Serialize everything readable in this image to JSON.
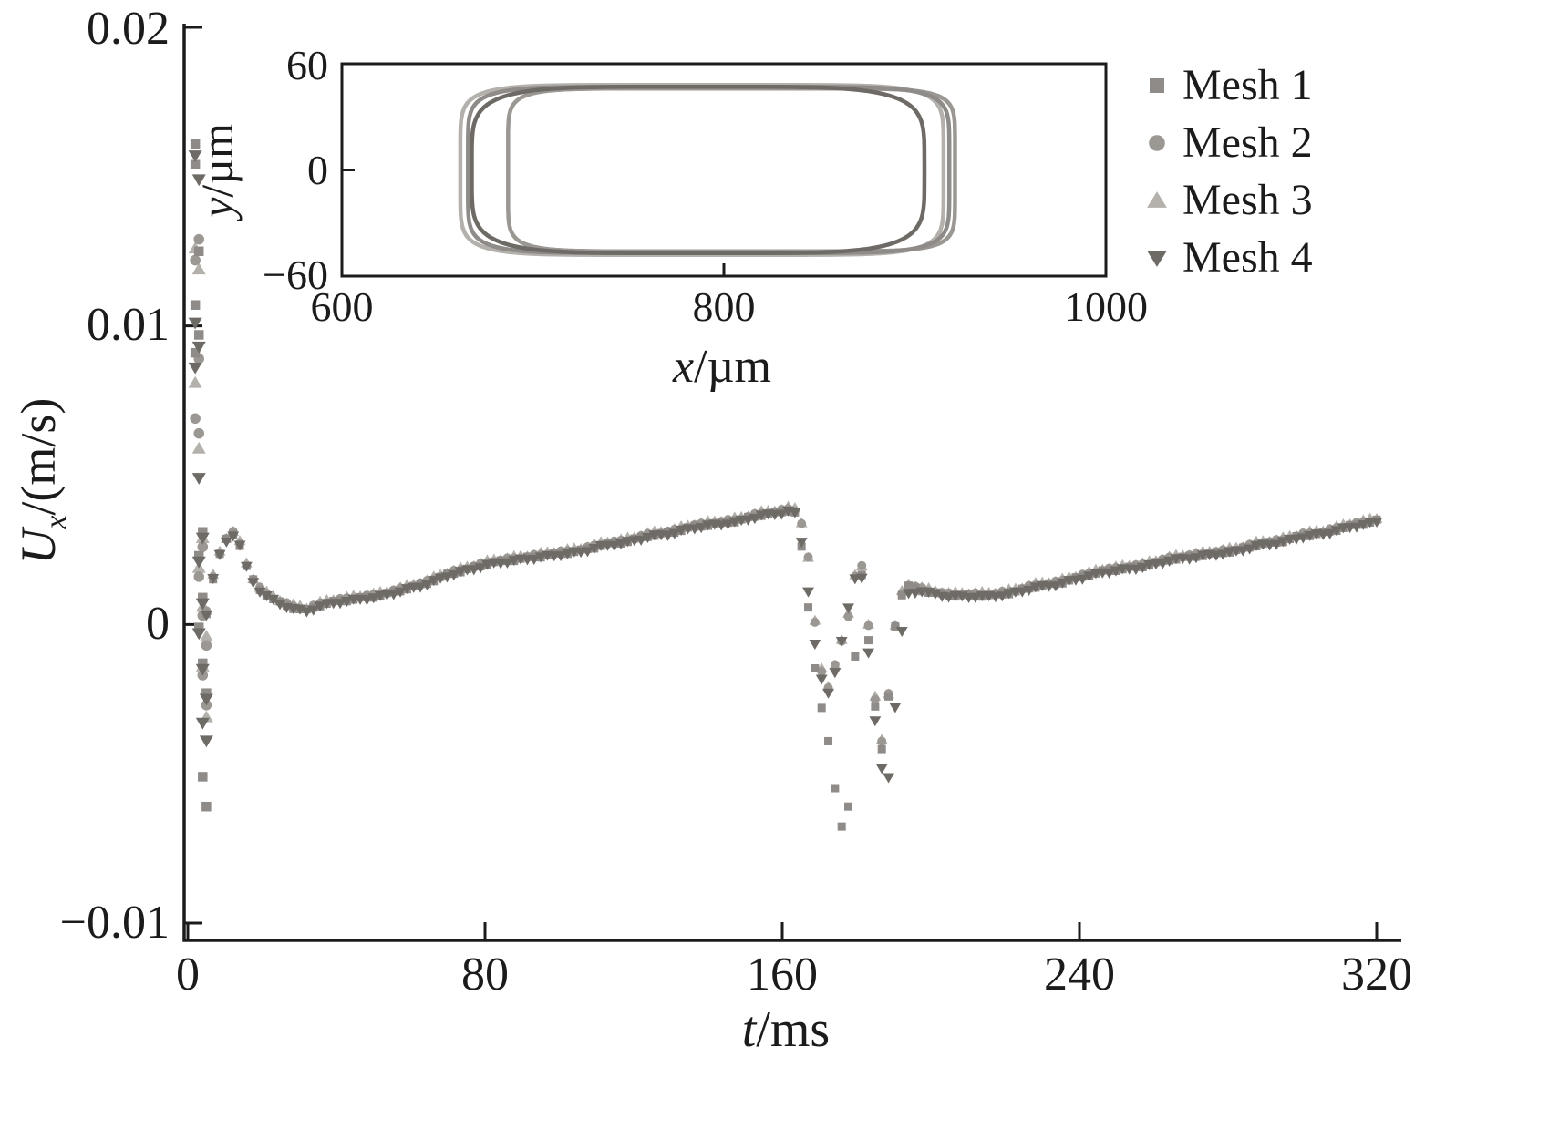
{
  "figure": {
    "background": "#ffffff",
    "text_color": "#1b1b1b",
    "axis_color": "#1b1b1b"
  },
  "main_axis": {
    "xlabel_var": "t",
    "xlabel_rest": "/ms",
    "ylabel_var": "U",
    "ylabel_sub": "x",
    "ylabel_rest": "/(m/s)",
    "x_tick_labels": [
      "0",
      "80",
      "160",
      "240",
      "320"
    ],
    "y_tick_labels": [
      "0.02",
      "0.01",
      "0",
      "−0.01"
    ]
  },
  "inset_axis": {
    "xlabel_var": "x",
    "xlabel_rest": "/µm",
    "ylabel_var": "y",
    "ylabel_rest": "/µm",
    "x_tick_labels": [
      "600",
      "800",
      "1000"
    ],
    "y_tick_labels": [
      "60",
      "0",
      "−60"
    ]
  },
  "legend": {
    "position": "top-right",
    "items": [
      {
        "label": "Mesh 1",
        "marker": "square",
        "color": "#8f8b88"
      },
      {
        "label": "Mesh 2",
        "marker": "circle",
        "color": "#9b9793"
      },
      {
        "label": "Mesh 3",
        "marker": "triangle-up",
        "color": "#b4b1ac"
      },
      {
        "label": "Mesh 4",
        "marker": "triangle-down",
        "color": "#6e6a66"
      }
    ]
  },
  "chart_data": [
    {
      "type": "scatter",
      "title": "",
      "xlabel": "t/ms",
      "ylabel": "U_x/(m/s)",
      "xlim": [
        0,
        320
      ],
      "ylim": [
        -0.01,
        0.02
      ],
      "x_ticks": [
        0,
        80,
        160,
        240,
        320
      ],
      "y_ticks": [
        -0.01,
        0,
        0.01,
        0.02
      ],
      "grid": false,
      "legend_position": "top-right",
      "marker_step_ms": 1.8,
      "base_curve": [
        [
          5,
          0.0004
        ],
        [
          6,
          0.0011
        ],
        [
          7,
          0.0017
        ],
        [
          8,
          0.0022
        ],
        [
          10,
          0.0028
        ],
        [
          12,
          0.0031
        ],
        [
          14,
          0.0027
        ],
        [
          16,
          0.0019
        ],
        [
          18,
          0.0014
        ],
        [
          20,
          0.0011
        ],
        [
          24,
          0.0008
        ],
        [
          28,
          0.0006
        ],
        [
          32,
          0.0005
        ],
        [
          36,
          0.0007
        ],
        [
          40,
          0.0008
        ],
        [
          46,
          0.0009
        ],
        [
          52,
          0.001
        ],
        [
          58,
          0.0012
        ],
        [
          64,
          0.0014
        ],
        [
          70,
          0.0017
        ],
        [
          76,
          0.0019
        ],
        [
          82,
          0.0021
        ],
        [
          88,
          0.0022
        ],
        [
          94,
          0.0023
        ],
        [
          100,
          0.0024
        ],
        [
          106,
          0.0025
        ],
        [
          112,
          0.0027
        ],
        [
          118,
          0.0028
        ],
        [
          124,
          0.003
        ],
        [
          130,
          0.0031
        ],
        [
          136,
          0.0033
        ],
        [
          142,
          0.0034
        ],
        [
          148,
          0.0035
        ],
        [
          154,
          0.0037
        ],
        [
          160,
          0.0038
        ],
        [
          163,
          0.0039
        ],
        [
          165,
          0.0035
        ],
        [
          167,
          0.0022
        ],
        [
          168,
          0.001
        ],
        [
          169,
          -0.0002
        ],
        [
          170,
          -0.0012
        ],
        [
          171,
          -0.0018
        ],
        [
          172,
          -0.0022
        ],
        [
          173,
          -0.002
        ],
        [
          174,
          -0.0015
        ],
        [
          175,
          -0.001
        ],
        [
          177,
          -0.0002
        ],
        [
          178,
          0.0004
        ],
        [
          179,
          0.0012
        ],
        [
          180,
          0.0019
        ],
        [
          181,
          0.0022
        ],
        [
          182,
          0.0015
        ],
        [
          183,
          0.0002
        ],
        [
          184,
          -0.0012
        ],
        [
          185,
          -0.0025
        ],
        [
          186,
          -0.0035
        ],
        [
          187,
          -0.004
        ],
        [
          188,
          -0.0032
        ],
        [
          189,
          -0.0018
        ],
        [
          190,
          -0.0005
        ],
        [
          191,
          0.0005
        ],
        [
          192,
          0.001
        ],
        [
          194,
          0.0013
        ],
        [
          197,
          0.0012
        ],
        [
          200,
          0.0011
        ],
        [
          205,
          0.001
        ],
        [
          210,
          0.001
        ],
        [
          216,
          0.001
        ],
        [
          222,
          0.0011
        ],
        [
          228,
          0.0013
        ],
        [
          234,
          0.0014
        ],
        [
          240,
          0.0016
        ],
        [
          246,
          0.0018
        ],
        [
          252,
          0.0019
        ],
        [
          258,
          0.002
        ],
        [
          264,
          0.0022
        ],
        [
          270,
          0.0023
        ],
        [
          276,
          0.0024
        ],
        [
          282,
          0.0025
        ],
        [
          288,
          0.0027
        ],
        [
          294,
          0.0028
        ],
        [
          300,
          0.003
        ],
        [
          306,
          0.0031
        ],
        [
          312,
          0.0033
        ],
        [
          320,
          0.0035
        ]
      ],
      "series": [
        {
          "name": "Mesh 1",
          "marker": "square",
          "color": "#8f8b88",
          "z": 3,
          "offset": -3e-05,
          "startup_scatter": [
            [
              2,
              0.0161
            ],
            [
              2,
              0.0154
            ],
            [
              3,
              0.0125
            ],
            [
              2,
              0.0107
            ],
            [
              3,
              0.0097
            ],
            [
              2,
              0.0091
            ],
            [
              4,
              0.0031
            ],
            [
              3,
              0.0023
            ],
            [
              4,
              0.0009
            ],
            [
              3,
              -0.0001
            ],
            [
              4,
              -0.0013
            ],
            [
              5,
              -0.0023
            ],
            [
              4,
              -0.0051
            ],
            [
              5,
              -0.0061
            ]
          ],
          "dip_range": [
            163.5,
            194
          ],
          "dip_anchors": [
            [
              164,
              0.0036
            ],
            [
              165,
              0.0028
            ],
            [
              166,
              0.0018
            ],
            [
              167,
              0.0006
            ],
            [
              168,
              -0.0006
            ],
            [
              169,
              -0.0016
            ],
            [
              170,
              -0.0024
            ],
            [
              171,
              -0.003
            ],
            [
              172,
              -0.0036
            ],
            [
              173,
              -0.0044
            ],
            [
              174,
              -0.0053
            ],
            [
              175,
              -0.0061
            ],
            [
              176,
              -0.0067
            ],
            [
              177,
              -0.0071
            ],
            [
              178,
              -0.0058
            ],
            [
              179,
              -0.003
            ],
            [
              180,
              0.0002
            ],
            [
              181,
              0.002
            ],
            [
              182,
              0.0012
            ],
            [
              183,
              -0.0002
            ],
            [
              184,
              -0.0015
            ],
            [
              185,
              -0.0027
            ],
            [
              186,
              -0.0037
            ],
            [
              187,
              -0.0043
            ],
            [
              188,
              -0.0033
            ],
            [
              189,
              -0.0018
            ],
            [
              190,
              -0.0004
            ],
            [
              191,
              0.0006
            ],
            [
              192,
              0.001
            ],
            [
              194,
              0.0013
            ]
          ]
        },
        {
          "name": "Mesh 2",
          "marker": "circle",
          "color": "#9b9793",
          "z": 2,
          "offset": 2e-05,
          "startup_scatter": [
            [
              3,
              0.0129
            ],
            [
              2,
              0.0122
            ],
            [
              3,
              0.0089
            ],
            [
              2,
              0.0069
            ],
            [
              3,
              0.0064
            ],
            [
              4,
              0.0026
            ],
            [
              3,
              0.0016
            ],
            [
              4,
              0.0003
            ],
            [
              5,
              -0.0007
            ],
            [
              4,
              -0.0017
            ],
            [
              5,
              -0.0027
            ]
          ]
        },
        {
          "name": "Mesh 3",
          "marker": "triangle-up",
          "color": "#b4b1ac",
          "z": 1,
          "offset": 7e-05,
          "startup_scatter": [
            [
              2,
              0.0126
            ],
            [
              3,
              0.0119
            ],
            [
              2,
              0.0081
            ],
            [
              3,
              0.0059
            ],
            [
              4,
              0.0029
            ],
            [
              3,
              0.0019
            ],
            [
              4,
              0.0006
            ],
            [
              5,
              -0.0004
            ],
            [
              4,
              -0.0014
            ],
            [
              5,
              -0.0031
            ]
          ]
        },
        {
          "name": "Mesh 4",
          "marker": "triangle-down",
          "color": "#6e6a66",
          "z": 4,
          "offset": -7e-05,
          "startup_scatter": [
            [
              2,
              0.0157
            ],
            [
              3,
              0.0149
            ],
            [
              2,
              0.0101
            ],
            [
              3,
              0.0093
            ],
            [
              2,
              0.0086
            ],
            [
              3,
              0.0049
            ],
            [
              4,
              0.0029
            ],
            [
              3,
              0.0021
            ],
            [
              4,
              0.0007
            ],
            [
              3,
              -0.0003
            ],
            [
              4,
              -0.0015
            ],
            [
              5,
              -0.0025
            ],
            [
              4,
              -0.0033
            ],
            [
              5,
              -0.0039
            ]
          ],
          "dip_range": [
            163.5,
            194
          ],
          "dip_anchors": [
            [
              164,
              0.0036
            ],
            [
              165,
              0.003
            ],
            [
              166,
              0.0022
            ],
            [
              167,
              0.0012
            ],
            [
              168,
              0.0002
            ],
            [
              169,
              -0.0008
            ],
            [
              170,
              -0.0015
            ],
            [
              171,
              -0.002
            ],
            [
              172,
              -0.0023
            ],
            [
              173,
              -0.0021
            ],
            [
              174,
              -0.0016
            ],
            [
              175,
              -0.0011
            ],
            [
              176,
              -0.0005
            ],
            [
              177,
              0.0001
            ],
            [
              178,
              0.0007
            ],
            [
              179,
              0.0013
            ],
            [
              180,
              0.0018
            ],
            [
              181,
              0.0021
            ],
            [
              182,
              0.001
            ],
            [
              183,
              -0.0006
            ],
            [
              184,
              -0.002
            ],
            [
              185,
              -0.0032
            ],
            [
              186,
              -0.0042
            ],
            [
              187,
              -0.0049
            ],
            [
              188,
              -0.0055
            ],
            [
              189,
              -0.0047
            ],
            [
              190,
              -0.0033
            ],
            [
              191,
              -0.0018
            ],
            [
              192,
              -0.0004
            ],
            [
              193,
              0.0006
            ],
            [
              194,
              0.0011
            ]
          ]
        }
      ]
    },
    {
      "type": "line",
      "role": "inset",
      "title": "",
      "xlabel": "x/µm",
      "ylabel": "y/µm",
      "xlim": [
        600,
        1000
      ],
      "ylim": [
        -60,
        60
      ],
      "x_ticks": [
        600,
        800,
        1000
      ],
      "y_ticks": [
        -60,
        0,
        60
      ],
      "grid": false,
      "contours": [
        {
          "name": "Mesh 1",
          "color": "#8f8b88",
          "x_left": 666,
          "x_right": 918,
          "y_half": 47,
          "squareness": 7,
          "z": 3
        },
        {
          "name": "Mesh 2",
          "color": "#9b9793",
          "x_left": 687,
          "x_right": 921,
          "y_half": 46,
          "squareness": 8,
          "z": 2
        },
        {
          "name": "Mesh 3",
          "color": "#b4b1ac",
          "x_left": 662,
          "x_right": 915,
          "y_half": 48,
          "squareness": 7,
          "z": 1
        },
        {
          "name": "Mesh 4",
          "color": "#6e6a66",
          "x_left": 668,
          "x_right": 905,
          "y_half": 47,
          "squareness": 5,
          "z": 4
        }
      ]
    }
  ]
}
